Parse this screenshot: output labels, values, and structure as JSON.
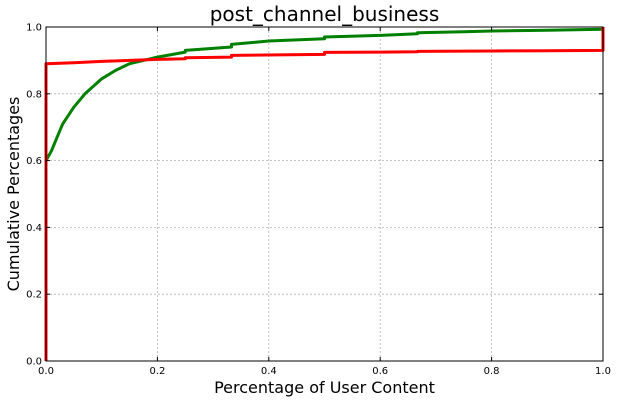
{
  "chart_data": {
    "type": "line",
    "title": "post_channel_business",
    "xlabel": "Percentage of User Content",
    "ylabel": "Cumulative Percentages",
    "xlim": [
      0,
      1
    ],
    "ylim": [
      0,
      1
    ],
    "grid": true,
    "x_ticks": [
      "0.0",
      "0.2",
      "0.4",
      "0.6",
      "0.8",
      "1.0"
    ],
    "y_ticks": [
      "0.0",
      "0.2",
      "0.4",
      "0.6",
      "0.8",
      "1.0"
    ],
    "series": [
      {
        "color": "#008000",
        "x": [
          0.0,
          0.0,
          0.01,
          0.02,
          0.03,
          0.05,
          0.07,
          0.1,
          0.125,
          0.15,
          0.175,
          0.2,
          0.25,
          0.25,
          0.333,
          0.333,
          0.4,
          0.5,
          0.5,
          0.6,
          0.667,
          0.667,
          0.75,
          0.8,
          0.9,
          1.0,
          1.0
        ],
        "y": [
          0.0,
          0.6,
          0.63,
          0.67,
          0.71,
          0.76,
          0.8,
          0.845,
          0.87,
          0.89,
          0.9,
          0.91,
          0.925,
          0.93,
          0.94,
          0.948,
          0.958,
          0.965,
          0.97,
          0.975,
          0.98,
          0.983,
          0.986,
          0.988,
          0.99,
          0.993,
          1.0
        ]
      },
      {
        "color": "#ff0000",
        "x": [
          0.0,
          0.0,
          0.05,
          0.1,
          0.15,
          0.2,
          0.25,
          0.25,
          0.333,
          0.333,
          0.5,
          0.5,
          0.6,
          0.667,
          0.667,
          0.8,
          0.9,
          1.0,
          1.0
        ],
        "y": [
          0.0,
          0.89,
          0.893,
          0.897,
          0.9,
          0.903,
          0.905,
          0.908,
          0.91,
          0.915,
          0.918,
          0.924,
          0.925,
          0.926,
          0.927,
          0.928,
          0.929,
          0.93,
          1.0
        ]
      }
    ]
  }
}
